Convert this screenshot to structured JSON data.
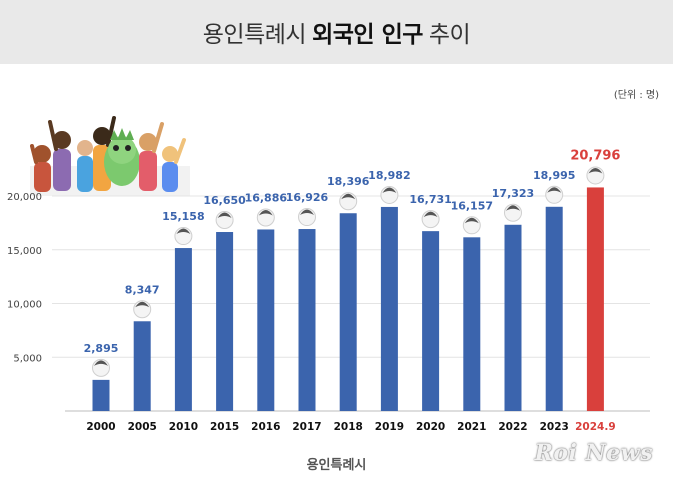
{
  "header": {
    "title_light": "용인특례시",
    "title_bold": "외국인 인구",
    "title_end": "추이"
  },
  "unit_label": "(단위 : 명)",
  "brand": "용인특례시",
  "watermark": "Roi News",
  "colors": {
    "bar": "#3b64ad",
    "bar_highlight": "#d9403c",
    "label": "#3b64ad",
    "label_highlight": "#d9403c",
    "header_bg": "#e9e9e9"
  },
  "chart_data": {
    "type": "bar",
    "title": "용인특례시 외국인 인구 추이",
    "categories": [
      "2000",
      "2005",
      "2010",
      "2015",
      "2016",
      "2017",
      "2018",
      "2019",
      "2020",
      "2021",
      "2022",
      "2023",
      "2024.9"
    ],
    "values": [
      2895,
      8347,
      15158,
      16650,
      16886,
      16926,
      18396,
      18982,
      16731,
      16157,
      17323,
      18995,
      20796
    ],
    "value_labels": [
      "2,895",
      "8,347",
      "15,158",
      "16,650",
      "16,886",
      "16,926",
      "18,396",
      "18,982",
      "16,731",
      "16,157",
      "17,323",
      "18,995",
      "20,796"
    ],
    "highlight_index": 12,
    "y_ticks": [
      5000,
      10000,
      15000,
      20000
    ],
    "y_tick_labels": [
      "5,000",
      "10,000",
      "15,000",
      "20,000"
    ],
    "ylim": [
      0,
      24000
    ],
    "grid": true,
    "xlabel": "",
    "ylabel": ""
  }
}
